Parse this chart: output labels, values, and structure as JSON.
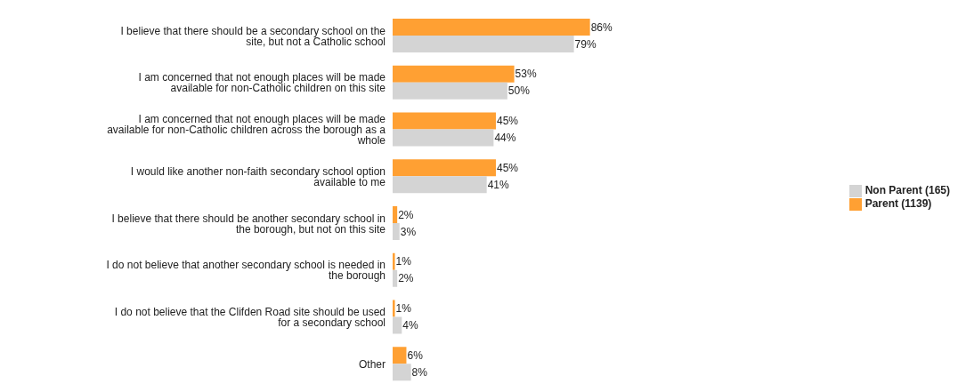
{
  "chart_data": {
    "type": "bar",
    "orientation": "horizontal",
    "legend": "right",
    "categories": [
      "I believe that there should be a secondary school on the site, but not a Catholic school",
      "I am concerned that not enough places will be made available for non-Catholic children on this site",
      "I am concerned that not enough places will be made available for non-Catholic children across the borough as a whole",
      "I would like another non-faith secondary school option available to me",
      "I believe that there should be another secondary school in the borough, but not on this site",
      "I do not believe that another secondary school is needed in the borough",
      "I do not believe that the Clifden Road site should be used for a secondary school",
      "Other"
    ],
    "series": [
      {
        "name": "Parent (1139)",
        "color": "#ffa033",
        "values": [
          86,
          53,
          45,
          45,
          2,
          1,
          1,
          6
        ],
        "value_labels": [
          "86%",
          "53%",
          "45%",
          "45%",
          "2%",
          "1%",
          "1%",
          "6%"
        ]
      },
      {
        "name": "Non Parent (165)",
        "color": "#d4d4d4",
        "values": [
          79,
          50,
          44,
          41,
          3,
          2,
          4,
          8
        ],
        "value_labels": [
          "79%",
          "50%",
          "44%",
          "41%",
          "3%",
          "2%",
          "4%",
          "8%"
        ]
      }
    ]
  }
}
